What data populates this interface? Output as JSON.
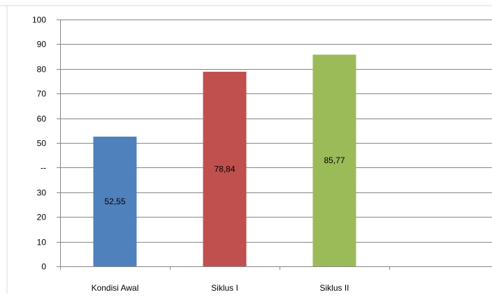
{
  "chart_data": {
    "type": "bar",
    "categories": [
      "Kondisi Awal",
      "Siklus I",
      "Siklus II"
    ],
    "values": [
      52.55,
      78.84,
      85.77
    ],
    "data_labels": [
      "52,55",
      "78,84",
      "85,77"
    ],
    "y_tick_labels": [
      "0",
      "10",
      "20",
      "30",
      "--",
      "50",
      "60",
      "70",
      "80",
      "90",
      "100"
    ],
    "ylim": [
      0,
      100
    ],
    "y_step": 10,
    "grid": true,
    "colors": [
      "#4f81bd",
      "#c0504d",
      "#9bbb59"
    ],
    "gridline_color": "#868686",
    "axis_color": "#868686",
    "text_color": "#000000"
  }
}
